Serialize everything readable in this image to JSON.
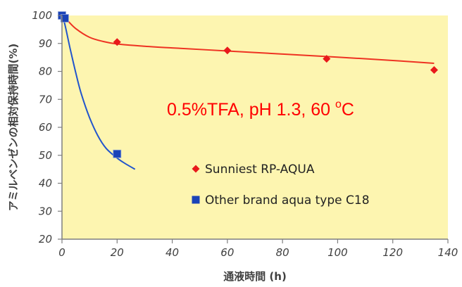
{
  "chart_data": {
    "type": "line",
    "title": "",
    "xlabel": "通液時間 (h)",
    "ylabel": "アミルベンゼンの相対保持時間(%)",
    "xlim": [
      0,
      140
    ],
    "ylim": [
      20,
      100
    ],
    "x_ticks": [
      0,
      20,
      40,
      60,
      80,
      100,
      120,
      140
    ],
    "y_ticks": [
      20,
      30,
      40,
      50,
      60,
      70,
      80,
      90,
      100
    ],
    "plot_background": "#fdf5b0",
    "grid": false,
    "legend_position": "center-right",
    "annotation": {
      "text": "0.5%TFA, pH 1.3,  60 ",
      "superscript": "o",
      "suffix": "C",
      "color": "#ff0000"
    },
    "series": [
      {
        "name": "Sunniest RP-AQUA",
        "color": "#e8191b",
        "line_color": "#ee3322",
        "marker": "diamond",
        "x": [
          0,
          1,
          20,
          60,
          96,
          135
        ],
        "y": [
          100,
          99,
          90.5,
          87.5,
          84.5,
          80.5
        ],
        "trend_x": [
          0,
          2,
          5,
          10,
          15,
          20,
          30,
          40,
          60,
          80,
          100,
          120,
          135
        ],
        "trend_y": [
          100,
          98.2,
          95.3,
          92.2,
          90.7,
          89.8,
          89.0,
          88.4,
          87.3,
          86.2,
          85.1,
          83.9,
          82.9
        ]
      },
      {
        "name": "Other brand aqua type C18",
        "color": "#1a43b8",
        "line_color": "#2255cc",
        "marker": "square",
        "x": [
          0,
          1,
          20
        ],
        "y": [
          100,
          99,
          50.5
        ],
        "trend_x": [
          0,
          1,
          3,
          5,
          7,
          10,
          13,
          16,
          20,
          23,
          26.5
        ],
        "trend_y": [
          100,
          97,
          88,
          79.5,
          72,
          63.5,
          57,
          52.5,
          49,
          47,
          45
        ]
      }
    ]
  }
}
